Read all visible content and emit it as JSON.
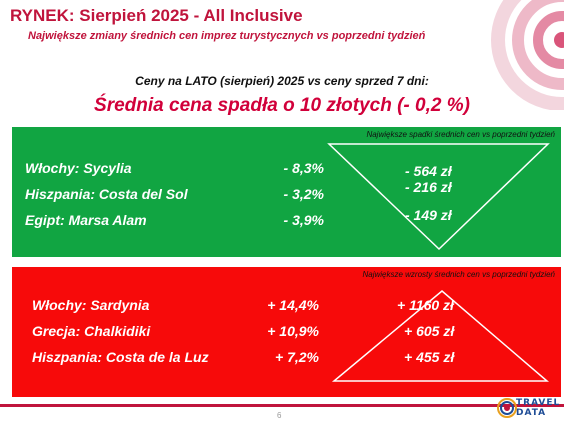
{
  "header": {
    "title": "RYNEK: Sierpień 2025 - All Inclusive",
    "subtitle": "Największe zmiany średnich cen imprez turystycznych vs poprzedni tydzień"
  },
  "intro": {
    "line": "Ceny na LATO (sierpień) 2025 vs ceny sprzed 7 dni:",
    "headline": "Średnia cena spadła o 10 złotych (- 0,2 %)"
  },
  "decreases": {
    "note": "Największe spadki średnich cen vs poprzedni tydzień",
    "color": "#11a542",
    "rows": [
      {
        "destination": "Włochy: Sycylia",
        "percent": "- 8,3%",
        "amount": "- 564 zł"
      },
      {
        "destination": "Hiszpania: Costa del Sol",
        "percent": "- 3,2%",
        "amount": "- 216 zł"
      },
      {
        "destination": "Egipt: Marsa Alam",
        "percent": "- 3,9%",
        "amount": "- 149 zł"
      }
    ]
  },
  "increases": {
    "note": "Największe wzrosty średnich cen vs poprzedni tydzień",
    "color": "#f70a0a",
    "rows": [
      {
        "destination": "Włochy: Sardynia",
        "percent": "+ 14,4%",
        "amount": "+ 1160 zł"
      },
      {
        "destination": "Grecja: Chalkidiki",
        "percent": "+ 10,9%",
        "amount": "+ 605 zł"
      },
      {
        "destination": "Hiszpania: Costa de la Luz",
        "percent": "+ 7,2%",
        "amount": "+ 455 zł"
      }
    ]
  },
  "footer": {
    "page_number": "6",
    "logo_line1": "TRAVEL",
    "logo_line2": "DATA"
  }
}
